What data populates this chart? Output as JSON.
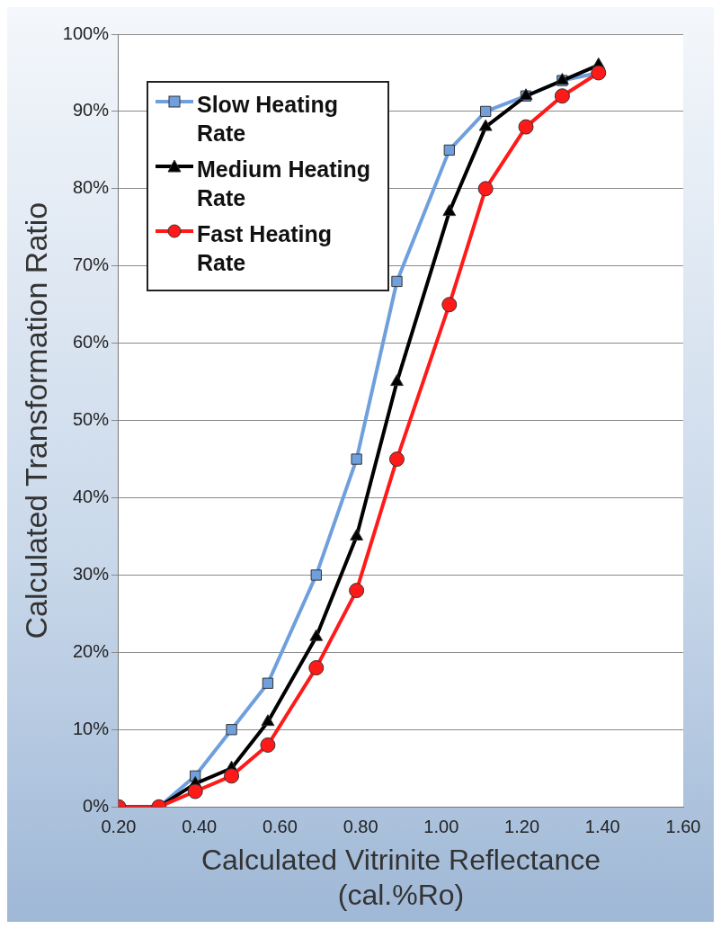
{
  "chart_data": {
    "type": "line",
    "xlabel": "Calculated Vitrinite Reflectance (cal.%Ro)",
    "ylabel": "Calculated Transformation Ratio",
    "x": [
      0.2,
      0.3,
      0.39,
      0.48,
      0.57,
      0.69,
      0.79,
      0.89,
      1.02,
      1.11,
      1.21,
      1.3,
      1.39
    ],
    "series": [
      {
        "name": "Slow Heating Rate",
        "color": "#6f9fdc",
        "marker": "square",
        "values": [
          0,
          0,
          4,
          10,
          16,
          30,
          45,
          68,
          85,
          90,
          92,
          94,
          95
        ]
      },
      {
        "name": "Medium Heating Rate",
        "color": "#000000",
        "marker": "triangle",
        "values": [
          0,
          0,
          3,
          5,
          11,
          22,
          35,
          55,
          77,
          88,
          92,
          94,
          96
        ]
      },
      {
        "name": "Fast Heating Rate",
        "color": "#ff1a1a",
        "marker": "circle",
        "values": [
          0,
          0,
          2,
          4,
          8,
          18,
          28,
          45,
          65,
          80,
          88,
          92,
          95
        ]
      }
    ],
    "xlim": [
      0.2,
      1.6
    ],
    "xticks": [
      {
        "value": 0.2,
        "label": "0.20"
      },
      {
        "value": 0.4,
        "label": "0.40"
      },
      {
        "value": 0.6,
        "label": "0.60"
      },
      {
        "value": 0.8,
        "label": "0.80"
      },
      {
        "value": 1.0,
        "label": "1.00"
      },
      {
        "value": 1.2,
        "label": "1.20"
      },
      {
        "value": 1.4,
        "label": "1.40"
      },
      {
        "value": 1.6,
        "label": "1.60"
      }
    ],
    "ylim": [
      0,
      100
    ],
    "yticks": [
      {
        "value": 0,
        "label": "0%"
      },
      {
        "value": 10,
        "label": "10%"
      },
      {
        "value": 20,
        "label": "20%"
      },
      {
        "value": 30,
        "label": "30%"
      },
      {
        "value": 40,
        "label": "40%"
      },
      {
        "value": 50,
        "label": "50%"
      },
      {
        "value": 60,
        "label": "60%"
      },
      {
        "value": 70,
        "label": "70%"
      },
      {
        "value": 80,
        "label": "80%"
      },
      {
        "value": 90,
        "label": "90%"
      },
      {
        "value": 100,
        "label": "100%"
      }
    ],
    "grid": "y",
    "legend": "top left",
    "line_style": "solid"
  }
}
